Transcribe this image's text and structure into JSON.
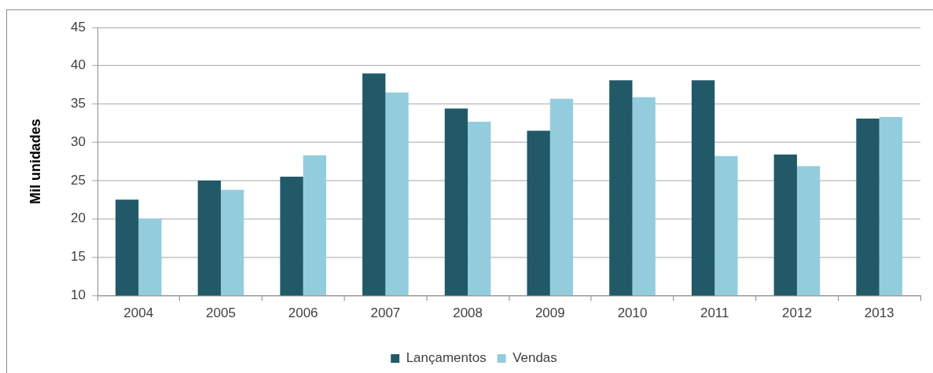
{
  "chart_data": {
    "type": "bar",
    "ylabel": "Mil unidades",
    "categories": [
      "2004",
      "2005",
      "2006",
      "2007",
      "2008",
      "2009",
      "2010",
      "2011",
      "2012",
      "2013"
    ],
    "series": [
      {
        "name": "Lançamentos",
        "color": "#215968",
        "values": [
          22.5,
          25.0,
          25.5,
          39.0,
          34.4,
          31.5,
          38.1,
          38.1,
          28.4,
          33.1
        ]
      },
      {
        "name": "Vendas",
        "color": "#93cddd",
        "values": [
          20.0,
          23.8,
          28.3,
          36.5,
          32.7,
          35.7,
          35.9,
          28.2,
          26.9,
          33.3
        ]
      }
    ],
    "ylim": [
      10,
      45
    ],
    "yticks": [
      10,
      15,
      20,
      25,
      30,
      35,
      40,
      45
    ],
    "grid": "y",
    "legend": "bottom"
  }
}
